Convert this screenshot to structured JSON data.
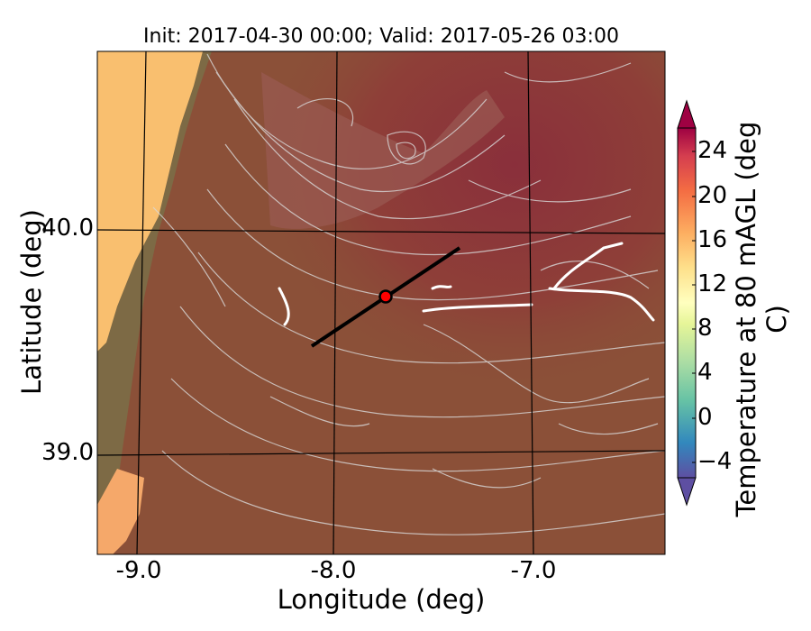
{
  "title": "Init: 2017-04-30 00:00; Valid: 2017-05-26 03:00",
  "xlabel": "Longitude (deg)",
  "ylabel": "Latitude (deg)",
  "colorbar": {
    "label": "Temperature at 80 mAGL (deg C)",
    "ticks": [
      "24",
      "20",
      "16",
      "12",
      "8",
      "4",
      "0",
      "−4"
    ],
    "range": [
      -8,
      28
    ],
    "extend": "both",
    "colormap": "Spectral_r"
  },
  "axes": {
    "xticks": [
      "-9.0",
      "-8.0",
      "-7.0"
    ],
    "yticks": [
      "40.0",
      "39.0"
    ],
    "xlim": [
      -9.25,
      -6.35
    ],
    "ylim": [
      38.55,
      40.8
    ]
  },
  "map": {
    "gridlines": "on",
    "contours": "terrain elevation",
    "shading": "temperature",
    "overlay_colors": {
      "land_warm": "#8b4a36",
      "land_hot": "#8a2f3b",
      "coast_warm": "#f9bf6f",
      "contours": "#d9d9d9"
    }
  },
  "cross_section": {
    "start": {
      "lon": -8.12,
      "lat": 39.5
    },
    "end": {
      "lon": -7.37,
      "lat": 39.92
    }
  },
  "marker": {
    "lon": -7.75,
    "lat": 39.7,
    "color": "#ff0000"
  }
}
